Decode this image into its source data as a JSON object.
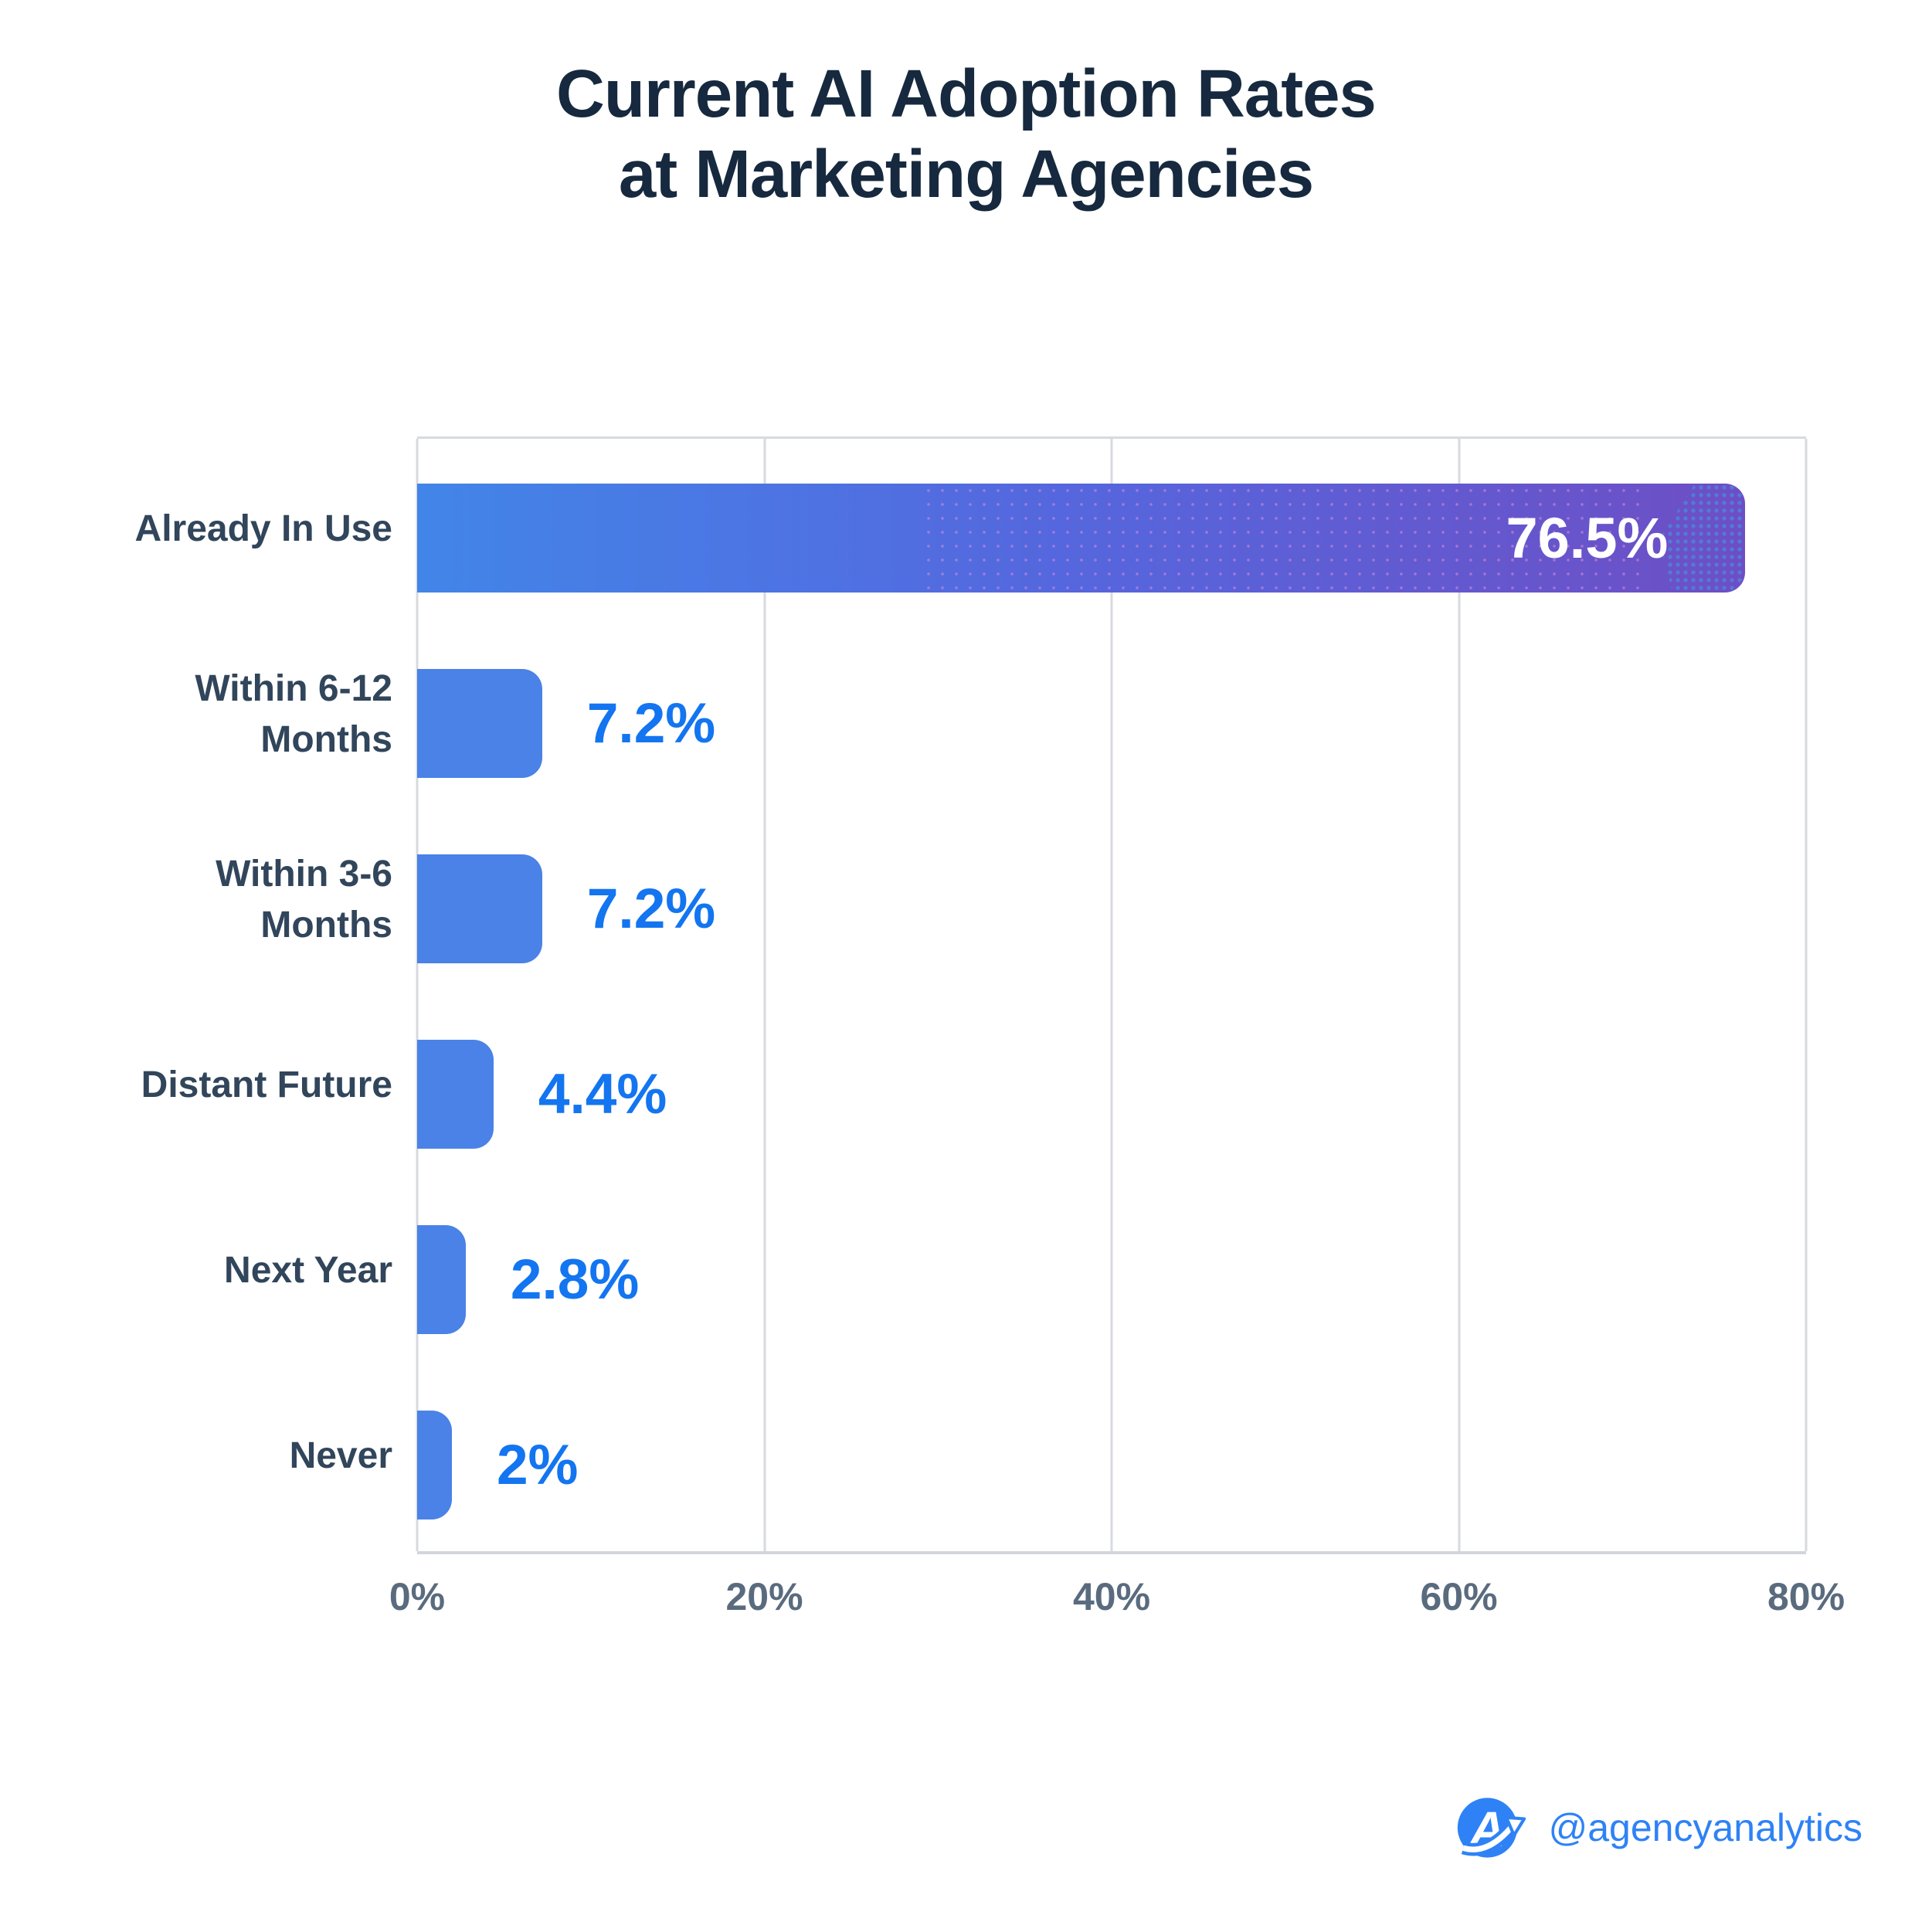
{
  "title": {
    "line1": "Current AI Adoption Rates",
    "line2": "at Marketing Agencies"
  },
  "chart_data": {
    "type": "bar",
    "orientation": "horizontal",
    "title": "Current AI Adoption Rates at Marketing Agencies",
    "categories": [
      "Already In Use",
      "Within 6-12 Months",
      "Within 3-6 Months",
      "Distant Future",
      "Next Year",
      "Never"
    ],
    "category_lines": [
      [
        "Already In Use"
      ],
      [
        "Within 6-12",
        "Months"
      ],
      [
        "Within 3-6",
        "Months"
      ],
      [
        "Distant Future"
      ],
      [
        "Next Year"
      ],
      [
        "Never"
      ]
    ],
    "values": [
      76.5,
      7.2,
      7.2,
      4.4,
      2.8,
      2
    ],
    "value_labels": [
      "76.5%",
      "7.2%",
      "7.2%",
      "4.4%",
      "2.8%",
      "2%"
    ],
    "xlabel": "",
    "ylabel": "",
    "xlim": [
      0,
      80
    ],
    "x_ticks": [
      0,
      20,
      40,
      60,
      80
    ],
    "x_tick_labels": [
      "0%",
      "20%",
      "40%",
      "60%",
      "80%"
    ],
    "grid": "vertical-only",
    "legend": false
  },
  "colors": {
    "bar_blue": "#4A82E7",
    "bar_gradient_start": "#4285E8",
    "bar_gradient_mid": "#5567DE",
    "bar_gradient_end": "#6E4EC5",
    "value_label_blue": "#1375F0",
    "inside_label_white": "#FFFFFF",
    "title_navy": "#16293E",
    "category_navy": "#31455B",
    "axis_text": "#5A6B7E",
    "gridline": "#D7DADE",
    "brand_blue": "#2E82F6",
    "texture_dot_blue": "#4F80D8"
  },
  "footer": {
    "handle": "@agencyanalytics"
  }
}
